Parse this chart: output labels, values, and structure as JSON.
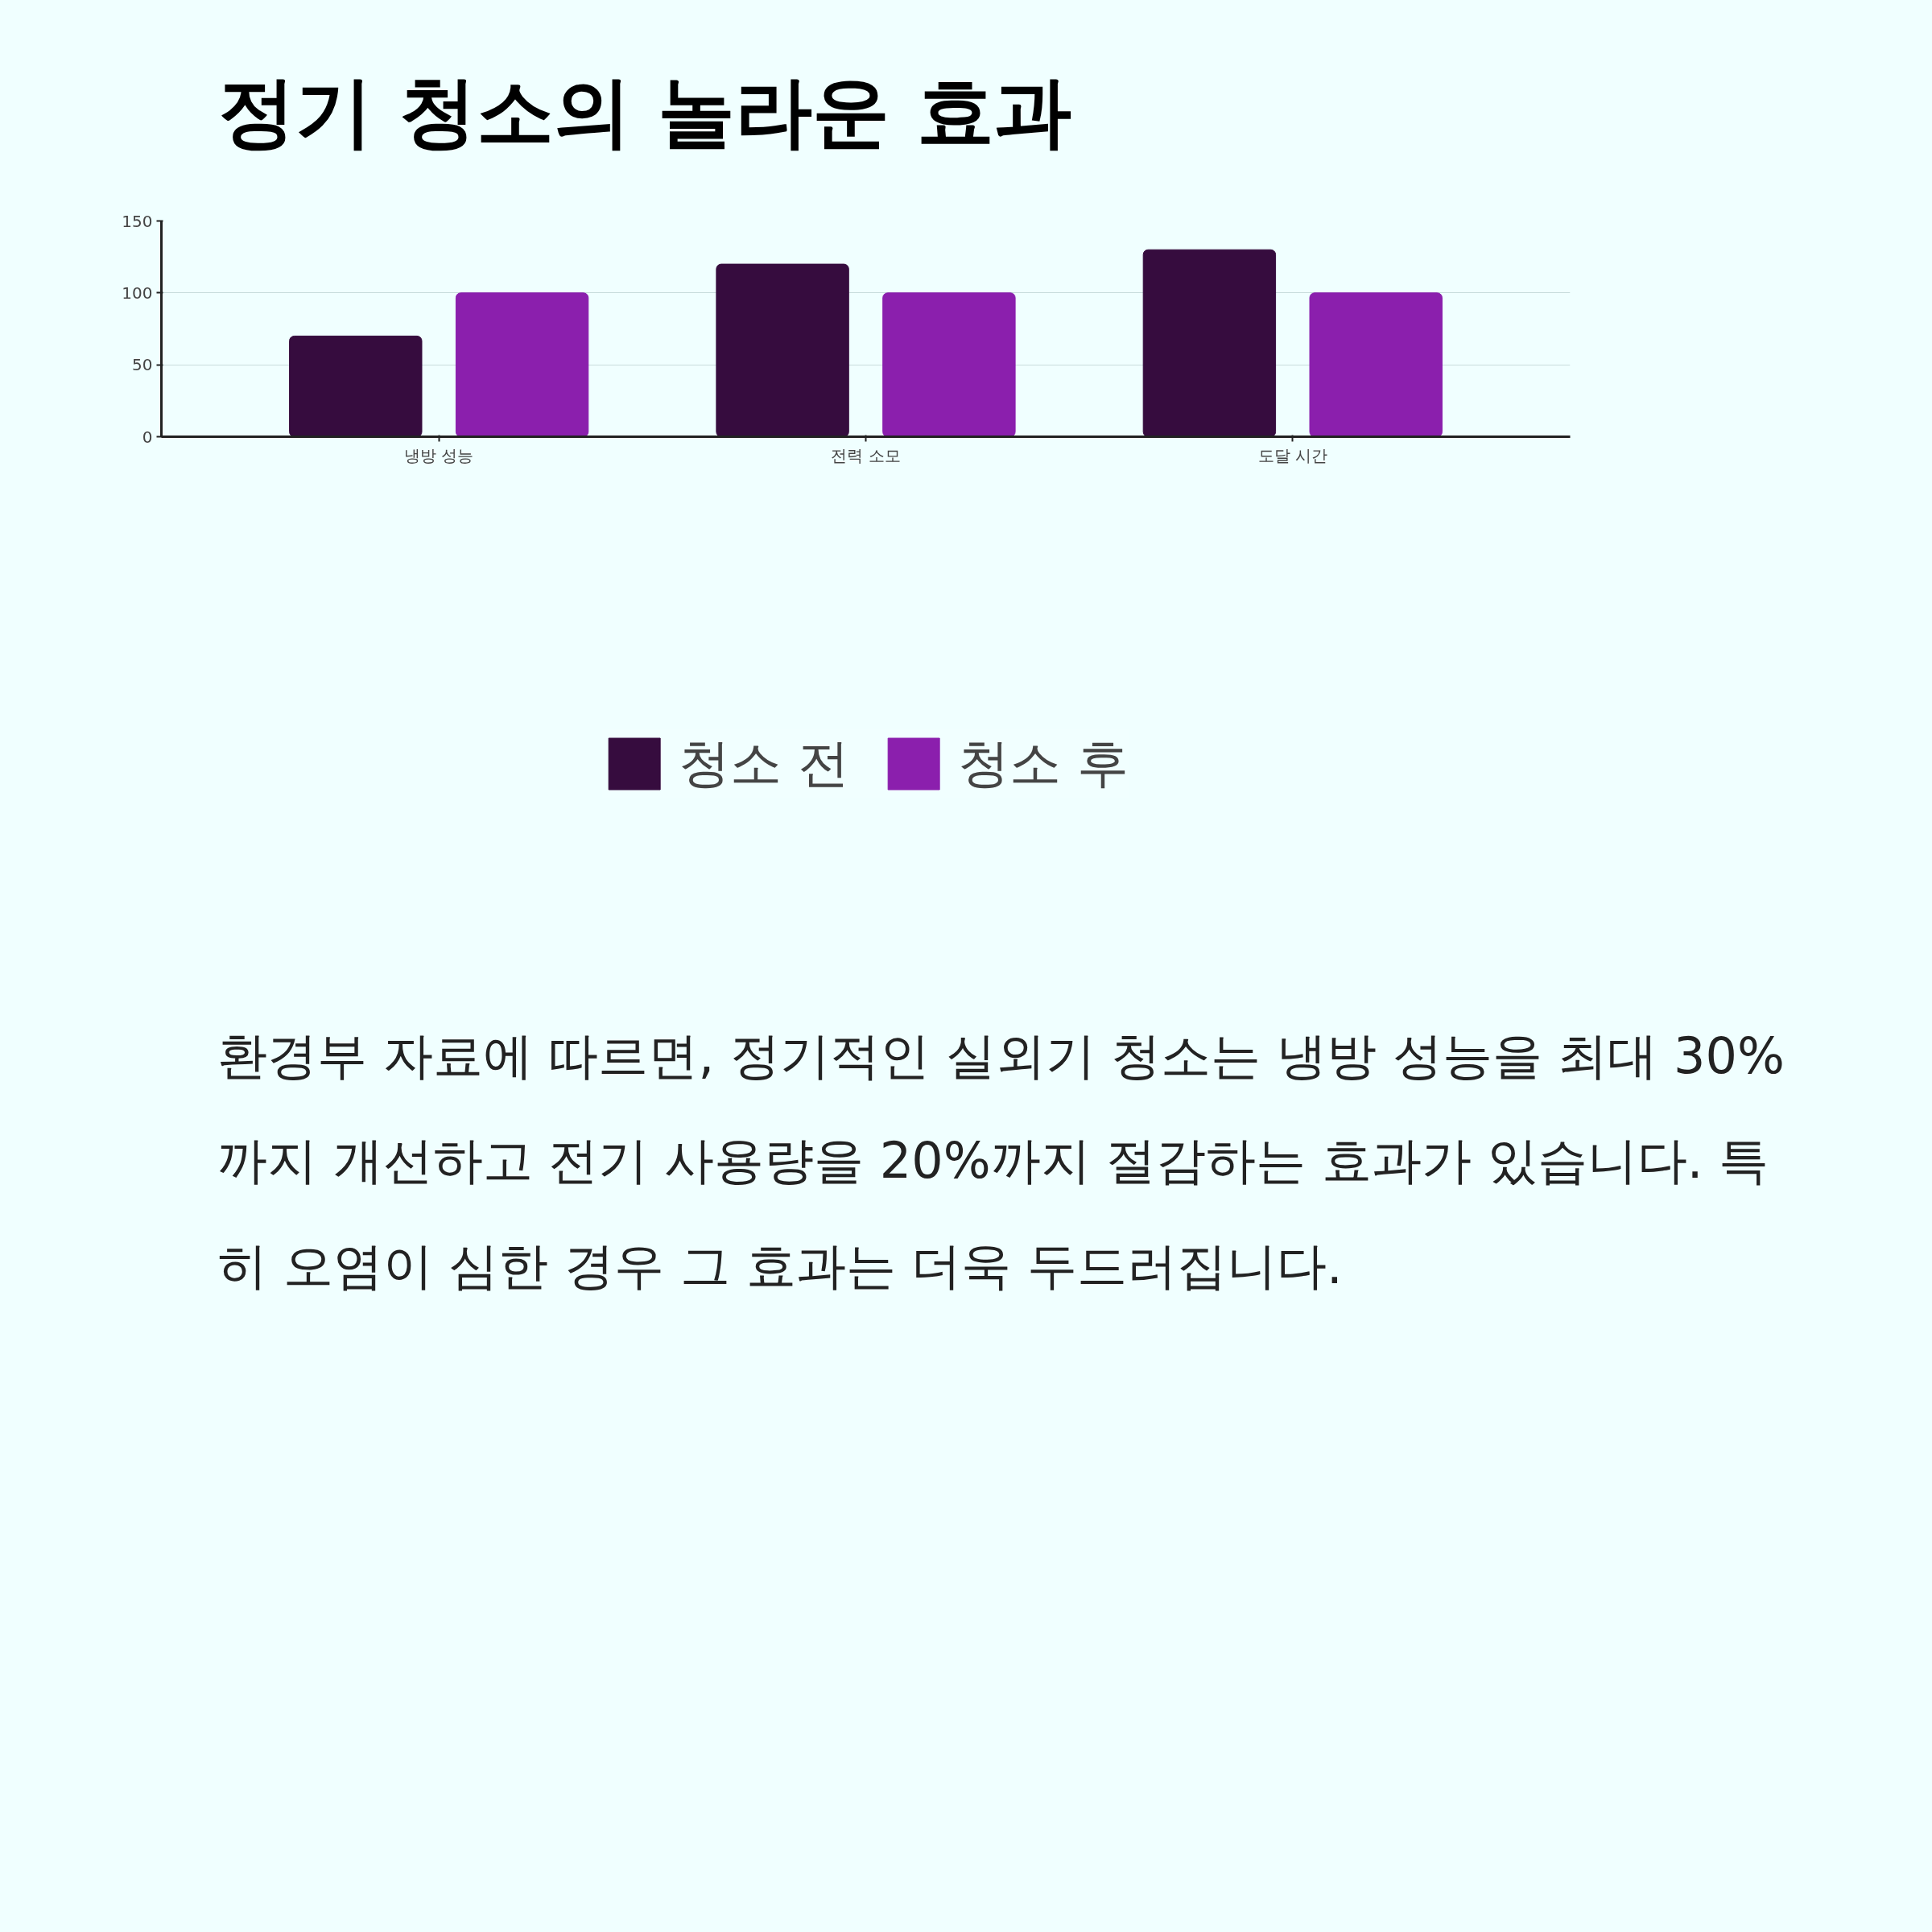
{
  "chart_data": {
    "type": "bar",
    "title": "정기 청소의 놀라운 효과",
    "categories": [
      "냉방 성능",
      "전력 소모",
      "도달 시간"
    ],
    "series": [
      {
        "name": "청소 전",
        "color": "#360c3e",
        "values": [
          70,
          120,
          130
        ]
      },
      {
        "name": "청소 후",
        "color": "#8b1fad",
        "values": [
          100,
          100,
          100
        ]
      }
    ],
    "ylim": [
      0,
      150
    ],
    "yticks": [
      0,
      50,
      100,
      150
    ],
    "grid": "y",
    "legend": "bottom",
    "annotations": [
      "환경부 자료에 따르면, 정기적인 실외기 청소는 냉방 성능을 최대 30%까지 개선하고 전기 사용량을 20%까지 절감하는 효과가 있습니다. 특히 오염이 심한 경우 그 효과는 더욱 두드러집니다."
    ]
  }
}
